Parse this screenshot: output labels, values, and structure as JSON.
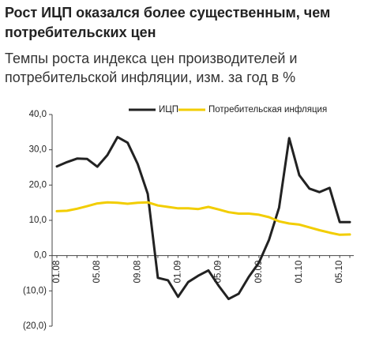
{
  "chart_data": {
    "type": "line",
    "title": "Рост ИЦП оказался более существенным, чем потребительских цен",
    "subtitle": "Темпы роста индекса цен производителей и потребительской инфляции, изм. за год в %",
    "categories": [
      "01.08",
      null,
      null,
      null,
      "05.08",
      null,
      null,
      null,
      "09.08",
      null,
      null,
      null,
      "01.09",
      null,
      null,
      null,
      "05.09",
      null,
      null,
      null,
      "09.09",
      null,
      null,
      null,
      "01.10",
      null,
      null,
      null,
      "05.10",
      null
    ],
    "series": [
      {
        "name": "ИЦП",
        "color": "#222222",
        "values": [
          25.3,
          26.5,
          27.5,
          27.4,
          25.2,
          28.5,
          33.6,
          32.0,
          26.0,
          17.5,
          -6.3,
          -7.0,
          -11.7,
          -7.5,
          -5.7,
          -4.2,
          -8.5,
          -12.3,
          -10.8,
          -6.0,
          -2.0,
          4.5,
          13.6,
          33.3,
          22.8,
          19.0,
          18.0,
          19.2,
          9.5,
          9.5
        ]
      },
      {
        "name": "Потребительская инфляция",
        "color": "#f2cd00",
        "values": [
          12.6,
          12.7,
          13.3,
          14.0,
          14.8,
          15.1,
          15.0,
          14.7,
          15.0,
          15.1,
          14.2,
          13.8,
          13.4,
          13.4,
          13.2,
          13.8,
          13.1,
          12.3,
          11.9,
          11.9,
          11.6,
          10.9,
          9.7,
          9.1,
          8.8,
          8.0,
          7.2,
          6.5,
          5.9,
          6.0
        ]
      }
    ],
    "ylim": [
      -20,
      40
    ],
    "yticks": [
      {
        "value": -20,
        "label": "(20,0)"
      },
      {
        "value": -10,
        "label": "(10,0)"
      },
      {
        "value": 0,
        "label": "0,0"
      },
      {
        "value": 10,
        "label": "10,0"
      },
      {
        "value": 20,
        "label": "20,0"
      },
      {
        "value": 30,
        "label": "30,0"
      },
      {
        "value": 40,
        "label": "40,0"
      }
    ],
    "grid": false
  }
}
